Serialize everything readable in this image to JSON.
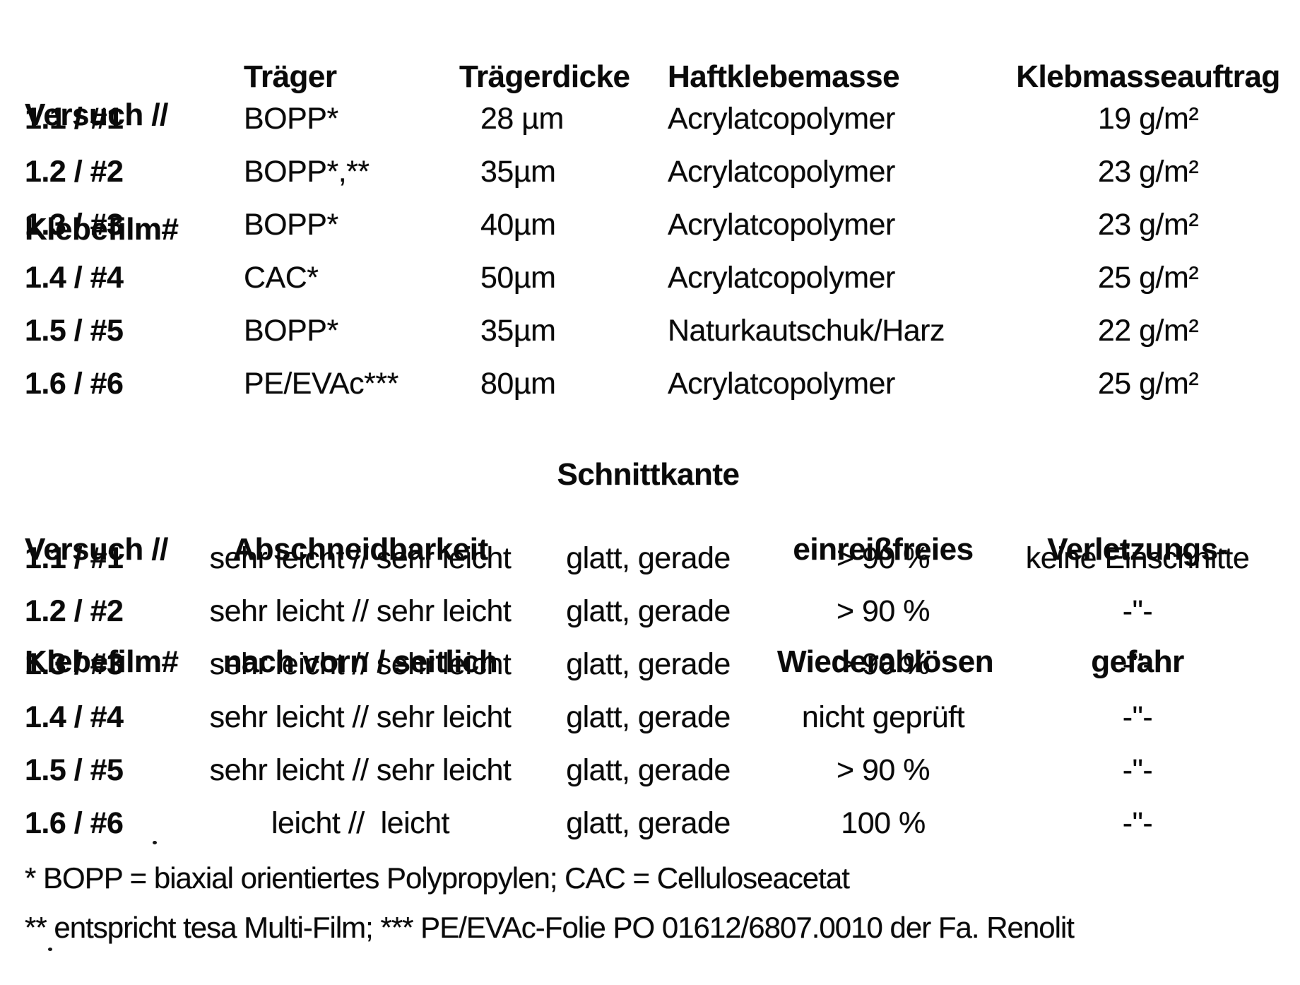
{
  "colors": {
    "background": "#ffffff",
    "text": "#0a0a0a"
  },
  "table1": {
    "header": {
      "col1_line1": "Versuch //",
      "col1_line2": "Klebefilm#",
      "col2": "Träger",
      "col3": "Trägerdicke",
      "col4": "Haftklebemasse",
      "col5": "Klebmasseauftrag"
    },
    "rows": [
      {
        "id": "1.1 / #1",
        "traeger": "BOPP*",
        "dicke": "28 µm",
        "masse": "Acrylatcopolymer",
        "auftrag": "19 g/m²"
      },
      {
        "id": "1.2 / #2",
        "traeger": "BOPP*,**",
        "dicke": "35µm",
        "masse": "Acrylatcopolymer",
        "auftrag": "23 g/m²"
      },
      {
        "id": "1.3 / #3",
        "traeger": "BOPP*",
        "dicke": "40µm",
        "masse": "Acrylatcopolymer",
        "auftrag": "23 g/m²"
      },
      {
        "id": "1.4 / #4",
        "traeger": "CAC*",
        "dicke": "50µm",
        "masse": "Acrylatcopolymer",
        "auftrag": "25 g/m²"
      },
      {
        "id": "1.5 / #5",
        "traeger": "BOPP*",
        "dicke": "35µm",
        "masse": "Naturkautschuk/Harz",
        "auftrag": "22 g/m²"
      },
      {
        "id": "1.6 / #6",
        "traeger": "PE/EVAc***",
        "dicke": "80µm",
        "masse": "Acrylatcopolymer",
        "auftrag": "25 g/m²"
      }
    ]
  },
  "table2": {
    "header": {
      "col1_line1": "Versuch //",
      "col1_line2": "Klebefilm#",
      "col2_line1": "Abschneidbarkeit",
      "col2_line2": "nach vorn / seitlich",
      "col3": "Schnittkante",
      "col4_line1": "einreißfreies",
      "col4_line2": "Wiederablösen",
      "col5_line1": "Verletzungs-",
      "col5_line2": "gefahr"
    },
    "rows": [
      {
        "id": "1.1 / #1",
        "abschneidbarkeit": "sehr leicht // sehr leicht",
        "schnittkante": "glatt, gerade",
        "wiederabloesen": "> 90 %",
        "verletzung": "keine Einschnitte"
      },
      {
        "id": "1.2 / #2",
        "abschneidbarkeit": "sehr leicht // sehr leicht",
        "schnittkante": "glatt, gerade",
        "wiederabloesen": "> 90 %",
        "verletzung": "-\"-"
      },
      {
        "id": "1.3 / #3",
        "abschneidbarkeit": "sehr leicht // sehr leicht",
        "schnittkante": "glatt, gerade",
        "wiederabloesen": "> 90 %",
        "verletzung": "-\"-"
      },
      {
        "id": "1.4 / #4",
        "abschneidbarkeit": "sehr leicht // sehr leicht",
        "schnittkante": "glatt, gerade",
        "wiederabloesen": "nicht geprüft",
        "verletzung": "-\"-"
      },
      {
        "id": "1.5 / #5",
        "abschneidbarkeit": "sehr leicht // sehr leicht",
        "schnittkante": "glatt, gerade",
        "wiederabloesen": "> 90 %",
        "verletzung": "-\"-"
      },
      {
        "id": "1.6 / #6",
        "abschneidbarkeit": "leicht //  leicht",
        "schnittkante": "glatt, gerade",
        "wiederabloesen": "100 %",
        "verletzung": "-\"-"
      }
    ]
  },
  "footnotes": {
    "line1": "* BOPP = biaxial orientiertes Polypropylen; CAC = Celluloseacetat",
    "line2": "** entspricht tesa Multi-Film; *** PE/EVAc-Folie PO 01612/6807.0010 der Fa. Renolit"
  }
}
